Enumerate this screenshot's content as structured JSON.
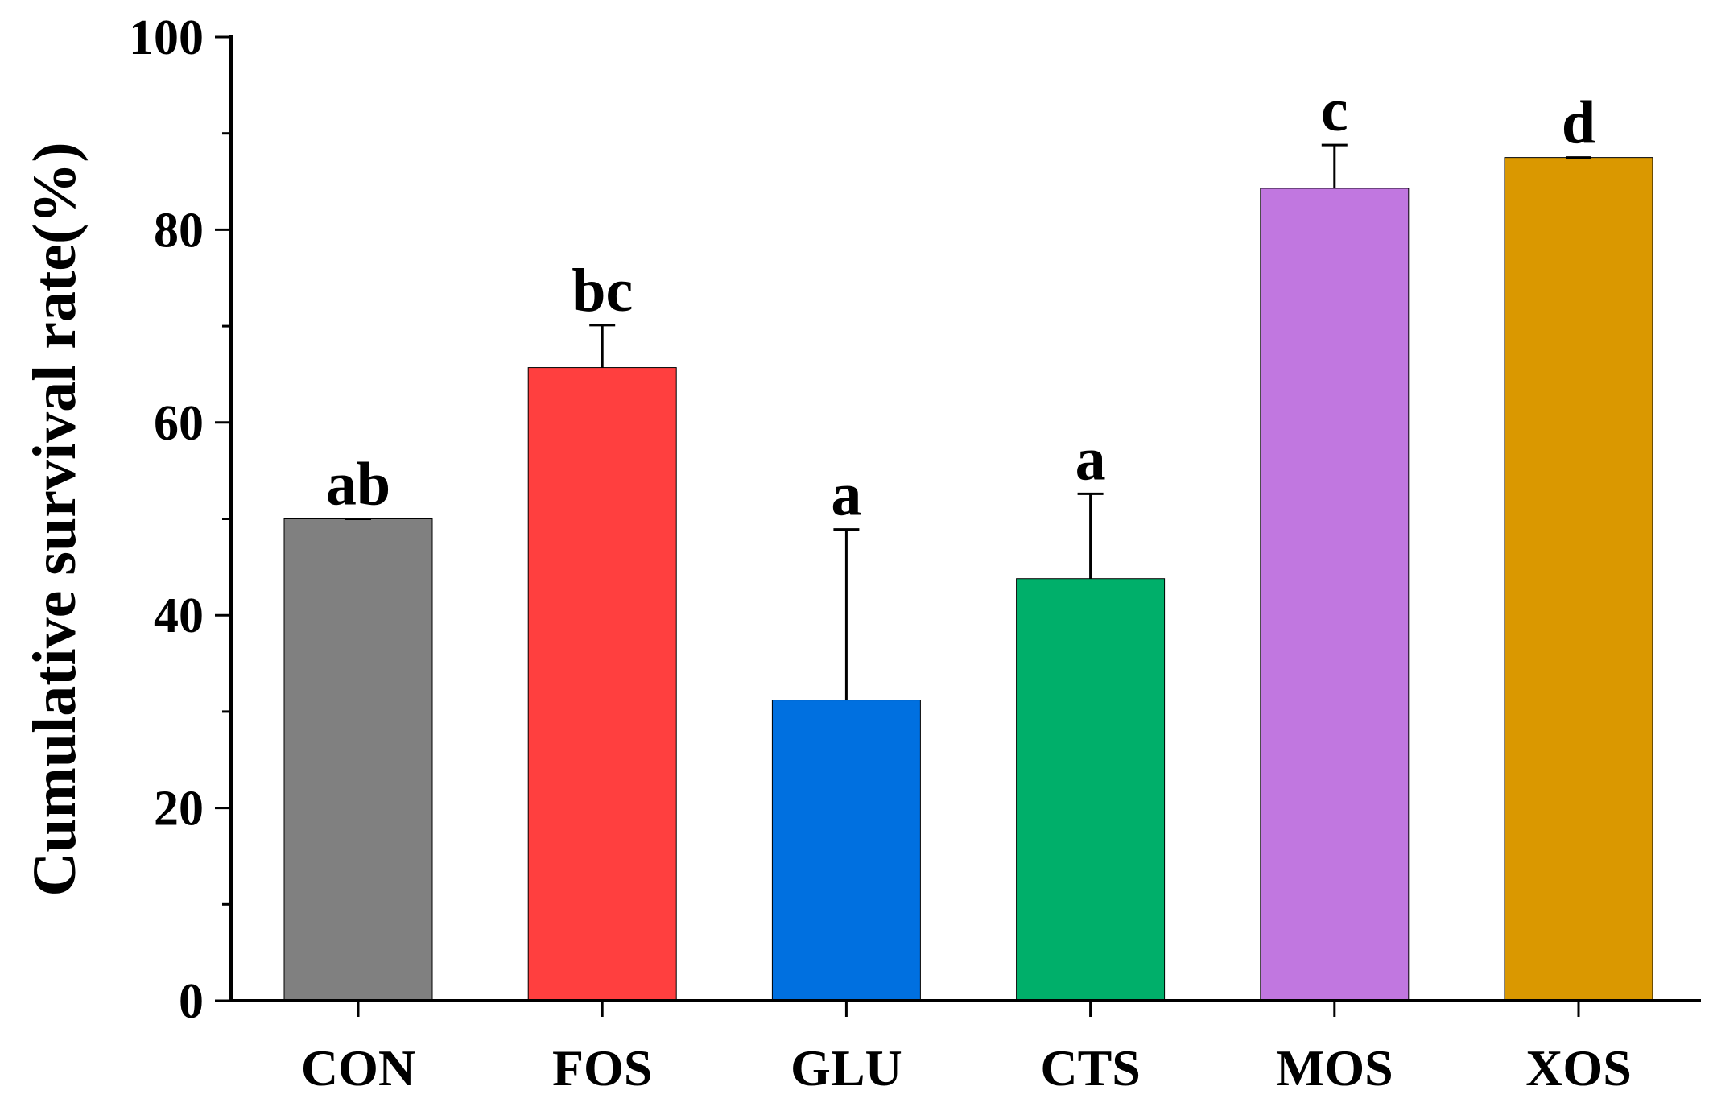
{
  "chart_data": {
    "type": "bar",
    "title": "",
    "xlabel": "",
    "ylabel": "Cumulative survival rate(%)",
    "ylim": [
      0,
      100
    ],
    "yticks": [
      0,
      20,
      40,
      60,
      80,
      100
    ],
    "yticks_minor": [
      10,
      30,
      50,
      70,
      90
    ],
    "grid": false,
    "legend": "none",
    "categories": [
      "CON",
      "FOS",
      "GLU",
      "CTS",
      "MOS",
      "XOS"
    ],
    "values": [
      50.0,
      65.7,
      31.2,
      43.8,
      84.3,
      87.5
    ],
    "errors": [
      0.0,
      4.4,
      17.7,
      8.8,
      4.5,
      0.0
    ],
    "significance": [
      "ab",
      "bc",
      "a",
      "a",
      "c",
      "d"
    ],
    "colors": [
      "#808080",
      "#FF3F3F",
      "#0070E0",
      "#00AF6A",
      "#C177E0",
      "#DA9800"
    ]
  }
}
